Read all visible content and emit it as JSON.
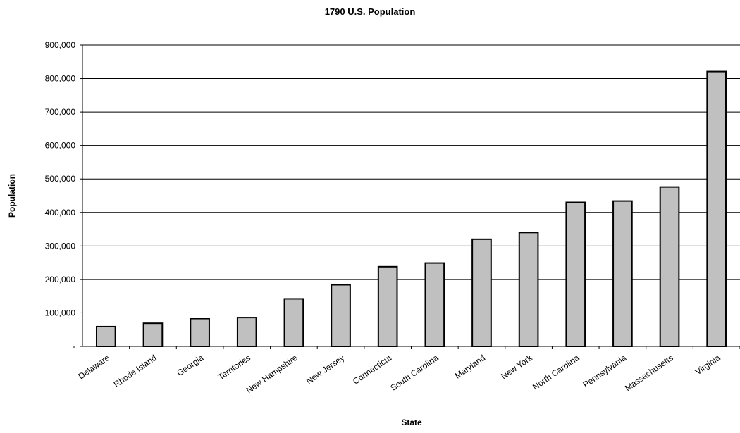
{
  "chart_data": {
    "type": "bar",
    "title": "1790 U.S. Population",
    "xlabel": "State",
    "ylabel": "Population",
    "ylim": [
      0,
      900000
    ],
    "yticks": [
      0,
      100000,
      200000,
      300000,
      400000,
      500000,
      600000,
      700000,
      800000,
      900000
    ],
    "ytick_labels": [
      "-",
      "100,000",
      "200,000",
      "300,000",
      "400,000",
      "500,000",
      "600,000",
      "700,000",
      "800,000",
      "900,000"
    ],
    "categories": [
      "Delaware",
      "Rhode Island",
      "Georgia",
      "Territories",
      "New Hampshire",
      "New Jersey",
      "Connecticut",
      "South Carolina",
      "Maryland",
      "New York",
      "North Carolina",
      "Pennsylvania",
      "Massachusetts",
      "Virginia"
    ],
    "values": [
      59000,
      69000,
      83000,
      86000,
      142000,
      184000,
      238000,
      249000,
      320000,
      340000,
      430000,
      434000,
      476000,
      821000
    ],
    "grid": true,
    "bar_color": "#c0c0c0",
    "bar_edge_color": "#000000"
  }
}
